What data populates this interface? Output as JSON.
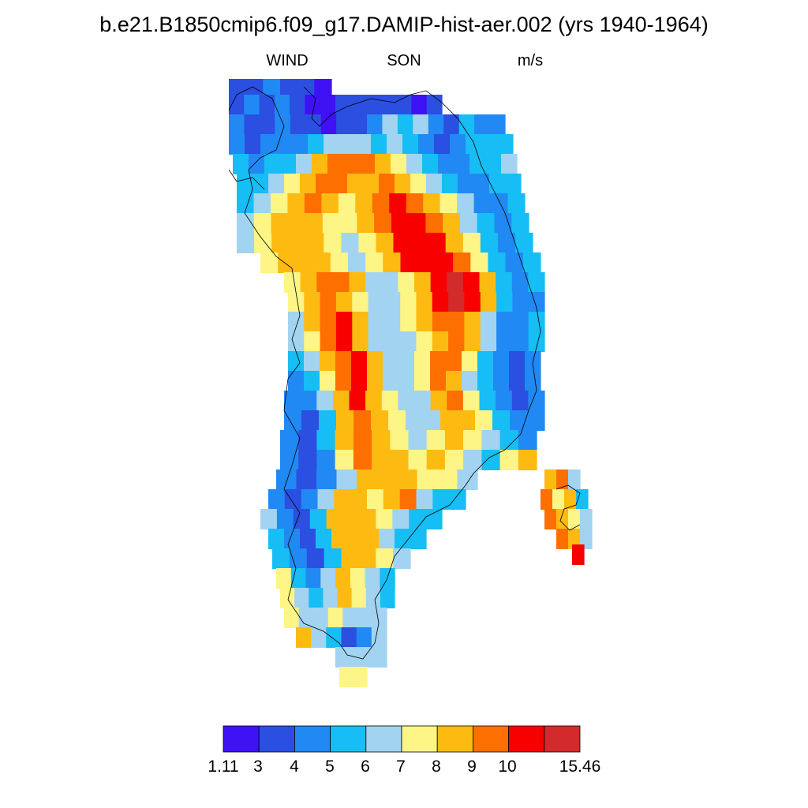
{
  "header": {
    "title": "b.e21.B1850cmip6.f09_g17.DAMIP-hist-aer.002 (yrs 1940-1964)",
    "variable": "WIND",
    "season": "SON",
    "units": "m/s"
  },
  "colorbar": {
    "colors": [
      "#3f11f5",
      "#2b4fe0",
      "#2189f3",
      "#17bdf5",
      "#a2d3f0",
      "#fdf585",
      "#fdbb11",
      "#fd6f00",
      "#f80000",
      "#d32b2b"
    ],
    "tick_labels": [
      "1.11",
      "3",
      "4",
      "5",
      "6",
      "7",
      "8",
      "9",
      "10",
      "15.46"
    ]
  },
  "chart_data": {
    "type": "heatmap",
    "title": "b.e21.B1850cmip6.f09_g17.DAMIP-hist-aer.002 (yrs 1940-1964)",
    "variable": "WIND",
    "season": "SON",
    "units": "m/s",
    "region": "Greenland",
    "value_range": [
      1.11,
      15.46
    ],
    "levels": [
      1.11,
      3,
      4,
      5,
      6,
      7,
      8,
      9,
      10,
      15.46
    ],
    "level_colors": [
      "#3f11f5",
      "#2b4fe0",
      "#2189f3",
      "#17bdf5",
      "#a2d3f0",
      "#fdf585",
      "#fdbb11",
      "#fd6f00",
      "#f80000",
      "#d32b2b"
    ],
    "colorbar_position": "bottom",
    "grid": false,
    "field_description": "Greenland wind speed; strongest (>10 m/s) along eastern and western ice-sheet slopes, weakest (6-7 m/s) along central ridge, 3-5 m/s along the coasts"
  }
}
